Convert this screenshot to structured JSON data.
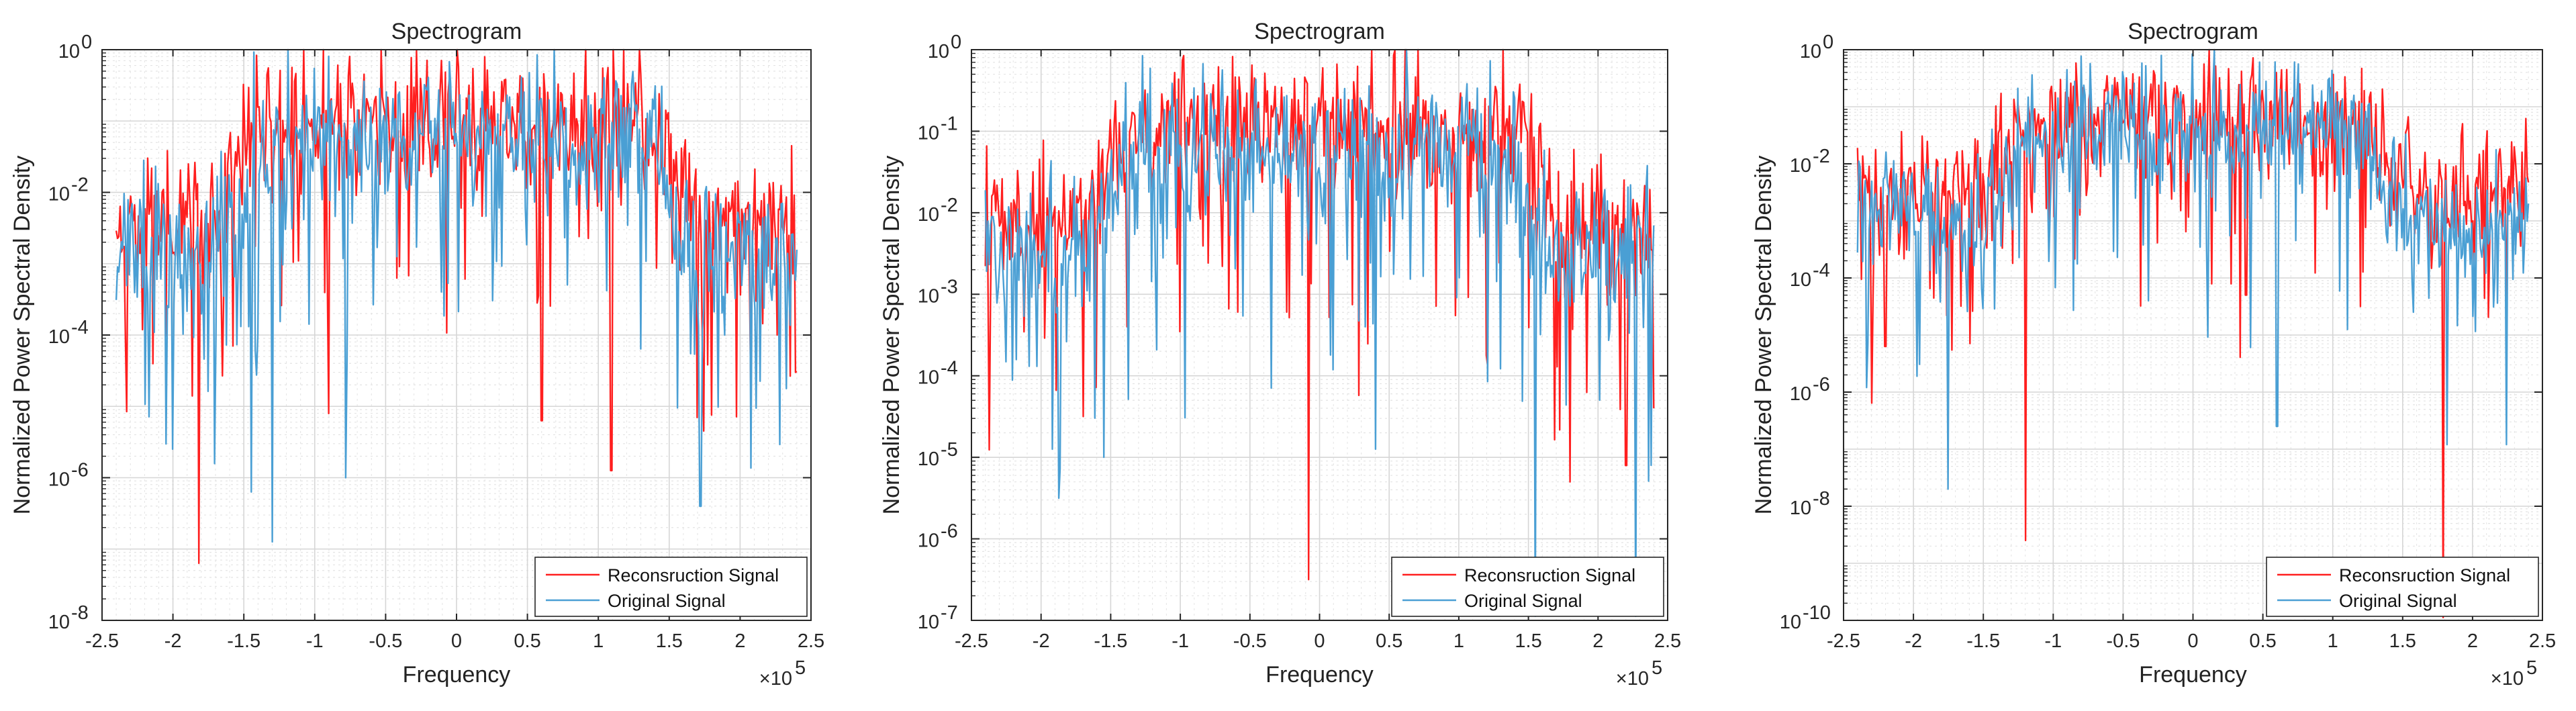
{
  "colors": {
    "reconstruction": "#ff1f1f",
    "original": "#4a9fd4",
    "grid_major": "#d6d6d6",
    "grid_minor": "#e4e4e4",
    "axis": "#262626"
  },
  "chart_data": [
    {
      "type": "line",
      "title": "Spectrogram",
      "xlabel": "Frequency",
      "ylabel": "Normalized Power Spectral Density",
      "x_multiplier": "×10",
      "x_multiplier_exp": "5",
      "xlim": [
        -2.5,
        2.5
      ],
      "x_ticks": [
        "-2.5",
        "-2",
        "-1.5",
        "-1",
        "-0.5",
        "0",
        "0.5",
        "1",
        "1.5",
        "2",
        "2.5"
      ],
      "yscale": "log",
      "ylim_exp": [
        -8,
        0
      ],
      "y_ticks": [
        {
          "base": "10",
          "exp": "0"
        },
        {
          "base": "10",
          "exp": "-2"
        },
        {
          "base": "10",
          "exp": "-4"
        },
        {
          "base": "10",
          "exp": "-6"
        },
        {
          "base": "10",
          "exp": "-8"
        }
      ],
      "legend": [
        "Reconsruction Signal",
        "Original Signal"
      ],
      "legend_loc": "bottom-right",
      "series": [
        {
          "name": "Reconsruction Signal",
          "profile": "log10 PSD ~ -2.5 at edges, ~ -1 in band [-1.5, 1.5]; deep nulls to 1e-7 near -1.8",
          "x_range": [
            -2.4,
            2.4
          ]
        },
        {
          "name": "Original Signal",
          "profile": "log10 PSD ~ -3 at edges, ~ -1.3 in band; nulls to ~1e-7 near -1.3",
          "x_range": [
            -2.4,
            2.4
          ]
        }
      ]
    },
    {
      "type": "line",
      "title": "Spectrogram",
      "xlabel": "Frequency",
      "ylabel": "Normalized Power Spectral Density",
      "x_multiplier": "×10",
      "x_multiplier_exp": "5",
      "xlim": [
        -2.5,
        2.5
      ],
      "x_ticks": [
        "-2.5",
        "-2",
        "-1.5",
        "-1",
        "-0.5",
        "0",
        "0.5",
        "1",
        "1.5",
        "2",
        "2.5"
      ],
      "yscale": "log",
      "ylim_exp": [
        -7,
        0
      ],
      "y_ticks": [
        {
          "base": "10",
          "exp": "0"
        },
        {
          "base": "10",
          "exp": "-1"
        },
        {
          "base": "10",
          "exp": "-2"
        },
        {
          "base": "10",
          "exp": "-3"
        },
        {
          "base": "10",
          "exp": "-4"
        },
        {
          "base": "10",
          "exp": "-5"
        },
        {
          "base": "10",
          "exp": "-6"
        },
        {
          "base": "10",
          "exp": "-7"
        }
      ],
      "legend": [
        "Reconsruction Signal",
        "Original Signal"
      ],
      "legend_loc": "bottom-right",
      "series": [
        {
          "name": "Reconsruction Signal",
          "profile": "log10 PSD ~ -2.3 at edges, ~ -1 in band; null to 3e-7 near -0.1",
          "x_range": [
            -2.4,
            2.4
          ]
        },
        {
          "name": "Original Signal",
          "profile": "log10 PSD ~ -2.6 at edges, ~ -1.3 in band; nulls near 1.55 and 2.25",
          "x_range": [
            -2.4,
            2.4
          ]
        }
      ]
    },
    {
      "type": "line",
      "title": "Spectrogram",
      "xlabel": "Frequency",
      "ylabel": "Normalized Power Spectral Density",
      "x_multiplier": "×10",
      "x_multiplier_exp": "5",
      "xlim": [
        -2.5,
        2.5
      ],
      "x_ticks": [
        "-2.5",
        "-2",
        "-1.5",
        "-1",
        "-0.5",
        "0",
        "0.5",
        "1",
        "1.5",
        "2",
        "2.5"
      ],
      "yscale": "log",
      "ylim_exp": [
        -10,
        0
      ],
      "y_ticks": [
        {
          "base": "10",
          "exp": "0"
        },
        {
          "base": "10",
          "exp": "-2"
        },
        {
          "base": "10",
          "exp": "-4"
        },
        {
          "base": "10",
          "exp": "-6"
        },
        {
          "base": "10",
          "exp": "-8"
        },
        {
          "base": "10",
          "exp": "-10"
        }
      ],
      "legend": [
        "Reconsruction Signal",
        "Original Signal"
      ],
      "legend_loc": "bottom-right",
      "series": [
        {
          "name": "Reconsruction Signal",
          "profile": "log10 PSD ~ -2.5 at edges, ~ -1.2 in band [-1.3, 1.3]; nulls near -1.2 (1e-8) and 1.8",
          "x_range": [
            -2.4,
            2.4
          ]
        },
        {
          "name": "Original Signal",
          "profile": "log10 PSD ~ -3 at edges, ~ -1.5 in band; nulls near -1.75 and 0.6",
          "x_range": [
            -2.4,
            2.4
          ]
        }
      ]
    }
  ]
}
